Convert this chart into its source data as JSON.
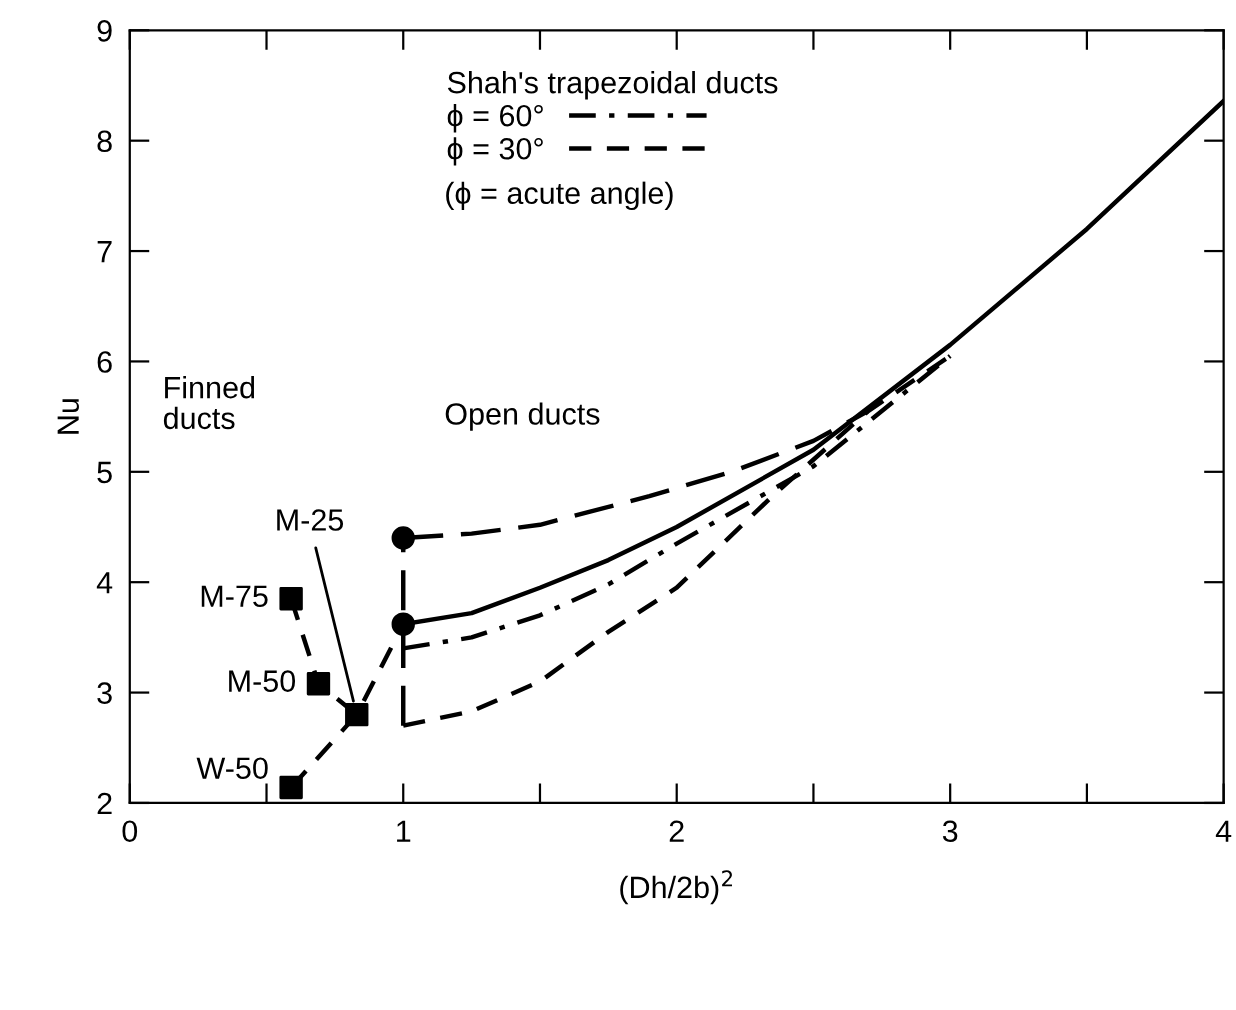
{
  "chart_data": {
    "type": "line",
    "xlabel": "(Dh/2b)$^{2}$",
    "ylabel": "Nu",
    "legend_title": "Shah's trapezoidal ducts",
    "legend": "top",
    "xlim": [
      0,
      4
    ],
    "ylim": [
      2,
      9
    ],
    "xticks": [
      0,
      {
        "value": 0.5,
        "label": null
      },
      1,
      {
        "value": 1.5,
        "label": null
      },
      2,
      {
        "value": 2.5,
        "label": null
      },
      3,
      {
        "value": 3.5,
        "label": null
      },
      4
    ],
    "yticks": [
      2,
      3,
      4,
      5,
      6,
      7,
      8,
      9
    ],
    "grid": false,
    "series": [
      {
        "color": "#000000",
        "line_style": "solid",
        "marker": "none",
        "x": [
          1,
          1.25,
          1.5,
          1.75,
          2,
          2.5,
          3,
          3.5,
          4
        ],
        "values": [
          3.62,
          3.72,
          3.95,
          4.2,
          4.5,
          5.2,
          6.15,
          7.2,
          8.36
        ]
      },
      {
        "name": "ϕ = 60°",
        "color": "#000000",
        "line_style": "dashdot",
        "marker": "none",
        "x": [
          1,
          1.25,
          1.5,
          1.75,
          2,
          2.5,
          3
        ],
        "values": [
          3.4,
          3.5,
          3.7,
          3.98,
          4.35,
          5.05,
          6.05
        ]
      },
      {
        "name": "ϕ = 30°",
        "color": "#000000",
        "line_style": "dashed",
        "marker": "none",
        "x": [
          1,
          1.25,
          1.5,
          1.75,
          2,
          2.35,
          2.7,
          3
        ],
        "values": [
          2.7,
          2.83,
          3.1,
          3.55,
          3.95,
          4.78,
          5.55,
          6.05
        ]
      },
      {
        "color": "#000000",
        "line_style": "longdash",
        "marker": "none",
        "x": [
          1,
          1.25,
          1.5,
          1.9,
          2.2,
          2.5,
          2.7
        ],
        "values": [
          4.4,
          4.44,
          4.52,
          4.78,
          5.0,
          5.28,
          5.55
        ]
      },
      {
        "color": "#000000",
        "line_style": "longdash",
        "marker": "none",
        "x": [
          1,
          1
        ],
        "values": [
          2.7,
          4.4
        ]
      },
      {
        "color": "#000000",
        "line_style": "dashed",
        "marker": "none",
        "x": [
          0.59,
          0.69,
          0.83
        ],
        "values": [
          3.85,
          3.08,
          2.8
        ]
      },
      {
        "color": "#000000",
        "line_style": "dashed",
        "marker": "none",
        "x": [
          0.59,
          0.83,
          1
        ],
        "values": [
          2.14,
          2.8,
          3.62
        ]
      },
      {
        "type": "scatter",
        "color": "#000000",
        "marker": "square",
        "x": [
          0.59,
          0.69,
          0.83,
          0.59
        ],
        "values": [
          3.85,
          3.08,
          2.8,
          2.14
        ]
      },
      {
        "type": "scatter",
        "color": "#000000",
        "marker": "circle",
        "x": [
          1,
          1
        ],
        "values": [
          4.4,
          3.62
        ]
      }
    ],
    "annotations": [
      {
        "text": "M-75",
        "x": 0.59,
        "y": 3.85
      },
      {
        "text": "M-50",
        "x": 0.69,
        "y": 3.08
      },
      {
        "text": "M-25",
        "x": 0.83,
        "y": 2.8
      },
      {
        "text": "W-50",
        "x": 0.59,
        "y": 2.14
      },
      "Finned\nducts",
      "Open ducts",
      "(ϕ = acute angle)"
    ]
  }
}
